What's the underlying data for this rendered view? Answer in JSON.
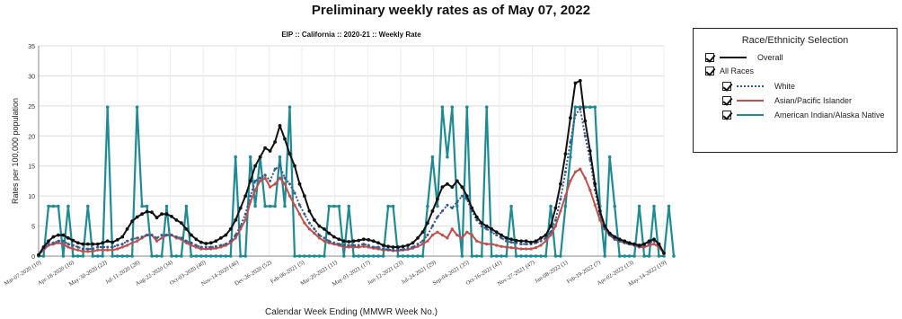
{
  "page_title": "Preliminary weekly rates as of May 07, 2022",
  "legend": {
    "title": "Race/Ethnicity Selection",
    "overall": "Overall",
    "all_races": "All Races",
    "white": "White",
    "asian": "Asian/Pacific Islander",
    "aian": "American Indian/Alaska Native"
  },
  "colors": {
    "overall": "#111111",
    "white": "#3a5a8c",
    "asian": "#c0504d",
    "aian": "#1f8a94"
  },
  "chart_data": {
    "type": "line",
    "title": "EIP :: California :: 2020-21 :: Weekly Rate",
    "xlabel": "Calendar Week Ending (MMWR Week No.)",
    "ylabel": "Rates per 100,000 population",
    "ylim": [
      0,
      35
    ],
    "yticks": [
      0,
      5,
      10,
      15,
      20,
      25,
      30,
      35
    ],
    "grid": true,
    "legend_position": "right, outside plot",
    "x_tick_labels": [
      "Mar-07-2020 (10)",
      "Apr-18-2020 (16)",
      "May-30-2020 (22)",
      "Jul-11-2020 (28)",
      "Aug-22-2020 (34)",
      "Oct-03-2020 (40)",
      "Nov-14-2020 (46)",
      "Dec-26-2020 (52)",
      "Feb-06-2021 (5)",
      "Mar-20-2021 (11)",
      "May-01-2021 (17)",
      "Jun-12-2021 (23)",
      "Jul-24-2021 (29)",
      "Sep-04-2021 (35)",
      "Oct-16-2021 (41)",
      "Nov-27-2021 (47)",
      "Jan-08-2022 (1)",
      "Feb-19-2022 (7)",
      "Apr-02-2022 (13)",
      "May-14-2022 (19)"
    ],
    "series": [
      {
        "name": "Overall",
        "values": [
          0.2,
          1.5,
          2.5,
          3.2,
          3.5,
          3.5,
          3,
          2.6,
          2.2,
          2,
          2,
          2,
          2,
          2.2,
          2.5,
          2.3,
          2.7,
          3.2,
          4.5,
          5.8,
          6.5,
          7,
          7.4,
          7.3,
          6.4,
          7,
          7,
          6.6,
          6,
          5.5,
          4.5,
          3.5,
          2.8,
          2.3,
          2.1,
          2.2,
          2.5,
          3,
          3.5,
          4.5,
          6,
          8,
          10,
          12.5,
          15,
          16.5,
          18,
          17.5,
          19,
          21.7,
          19.5,
          17,
          15,
          12,
          10,
          7.5,
          6,
          5,
          4.5,
          3.8,
          3.2,
          2.8,
          2.5,
          2.4,
          2.5,
          2.6,
          2.8,
          2.7,
          2.5,
          2.2,
          1.8,
          1.6,
          1.5,
          1.5,
          1.6,
          1.8,
          2.2,
          3,
          4,
          5.5,
          7.5,
          9.5,
          11.5,
          12,
          11.5,
          12.5,
          11.5,
          10,
          8,
          6.5,
          5.5,
          5,
          4.5,
          4,
          3.5,
          3,
          2.8,
          2.6,
          2.5,
          2.5,
          2.3,
          2.5,
          3,
          3.5,
          5,
          8,
          12,
          17,
          23,
          28.8,
          29.2,
          22.5,
          17.5,
          12,
          7.5,
          5,
          3.8,
          3.2,
          2.8,
          2.5,
          2.2,
          2,
          1.8,
          2,
          2.5,
          2.8,
          2,
          0.5
        ]
      },
      {
        "name": "White",
        "values": [
          0.2,
          1.2,
          2,
          2.2,
          2.5,
          2.5,
          2,
          1.8,
          1.5,
          1.2,
          1.2,
          1.2,
          1.5,
          1.5,
          1.5,
          1.5,
          1.8,
          2,
          2.5,
          2.8,
          3,
          3.2,
          3.5,
          3.5,
          3,
          3.5,
          3.5,
          3.5,
          3.2,
          3,
          2.5,
          2.2,
          1.8,
          1.5,
          1.5,
          1.5,
          1.6,
          1.8,
          2,
          2.5,
          3.5,
          5,
          7,
          10,
          12.5,
          13,
          13.5,
          12.5,
          14.5,
          15,
          13,
          12,
          10.5,
          8.5,
          7,
          5.5,
          4.5,
          3.5,
          3,
          2.5,
          2.2,
          2,
          1.8,
          1.8,
          1.8,
          1.8,
          2,
          1.8,
          1.5,
          1.5,
          1.2,
          1.1,
          1,
          1,
          1.1,
          1.3,
          1.5,
          2,
          2.5,
          3.5,
          5,
          6.5,
          7.5,
          8.5,
          8,
          9,
          10,
          9.5,
          7.5,
          6,
          5,
          4.5,
          4,
          3.5,
          3,
          2.5,
          2.3,
          2.2,
          2,
          2,
          2,
          2.2,
          2.5,
          3,
          4,
          6,
          9.5,
          14,
          19,
          23.5,
          24.5,
          20,
          16,
          11,
          7,
          4.5,
          3.5,
          2.8,
          2.5,
          2.2,
          2,
          1.8,
          1.6,
          1.8,
          2.2,
          2.5,
          1.8,
          0.5
        ]
      },
      {
        "name": "Asian/Pacific Islander",
        "values": [
          0.2,
          1,
          1.8,
          2,
          2.2,
          2,
          1.5,
          1.2,
          1,
          0.8,
          0.8,
          0.8,
          1,
          1,
          1,
          1,
          1.2,
          1.5,
          1.8,
          2.2,
          2.5,
          3,
          3.5,
          3.5,
          2.5,
          3,
          3.5,
          3.5,
          3,
          2.8,
          2.2,
          1.8,
          1.5,
          1.2,
          1.2,
          1.2,
          1.3,
          1.5,
          1.8,
          2.2,
          3,
          4.5,
          6,
          9,
          11,
          12.5,
          13,
          11.5,
          12,
          13,
          12,
          10,
          8.5,
          7,
          5.5,
          4.5,
          3.8,
          3,
          2.5,
          2.2,
          2,
          1.8,
          1.5,
          1.5,
          1.5,
          1.5,
          1.6,
          1.5,
          1.3,
          1.2,
          1,
          1,
          0.9,
          0.9,
          1,
          1.1,
          1.3,
          1.6,
          2,
          2.5,
          3.5,
          4,
          3.5,
          3,
          4.5,
          3.5,
          3,
          4,
          3.5,
          2.5,
          2.2,
          2,
          2,
          1.8,
          1.6,
          1.5,
          1.4,
          1.3,
          1.2,
          1.2,
          1.2,
          1.4,
          1.8,
          2.5,
          3.5,
          5,
          7.5,
          10,
          12.5,
          14,
          14.5,
          13,
          11,
          8.5,
          6,
          4.5,
          3.5,
          2.8,
          2.5,
          2.2,
          2,
          1.8,
          1.5,
          1.5,
          1.8,
          2,
          1.5,
          0.4
        ]
      },
      {
        "name": "American Indian/Alaska Native",
        "values": [
          0,
          0,
          8.3,
          8.3,
          8.3,
          0,
          8.3,
          0,
          0,
          0,
          8.3,
          0,
          0,
          0,
          24.8,
          0,
          0,
          0,
          0,
          0,
          24.8,
          8.3,
          8.3,
          0,
          0,
          0,
          8.3,
          0,
          0,
          0,
          8.3,
          0,
          0,
          0,
          0,
          0,
          0,
          0,
          0,
          0,
          16.5,
          0,
          0,
          16.5,
          8.3,
          16.5,
          8.3,
          8.3,
          8.3,
          16.5,
          8.3,
          24.8,
          0,
          0,
          0,
          0,
          0,
          0,
          0,
          8.3,
          8.3,
          8.3,
          0,
          8.3,
          0,
          0,
          0,
          0,
          0,
          0,
          0,
          8.3,
          8.3,
          0,
          0,
          0,
          0,
          0,
          0,
          8.3,
          16.5,
          8.3,
          24.8,
          16.5,
          24.8,
          8.3,
          0,
          24.8,
          0,
          0,
          0,
          24.8,
          0,
          0,
          0,
          0,
          8.3,
          0,
          0,
          0,
          0,
          0,
          0,
          0,
          8.3,
          0,
          0,
          8.3,
          16.5,
          24.8,
          24.8,
          24.8,
          24.8,
          24.8,
          8.3,
          0,
          16.5,
          8.3,
          0,
          0,
          0,
          0,
          8.3,
          0,
          0,
          8.3,
          0,
          0,
          8.3,
          0
        ]
      }
    ]
  }
}
